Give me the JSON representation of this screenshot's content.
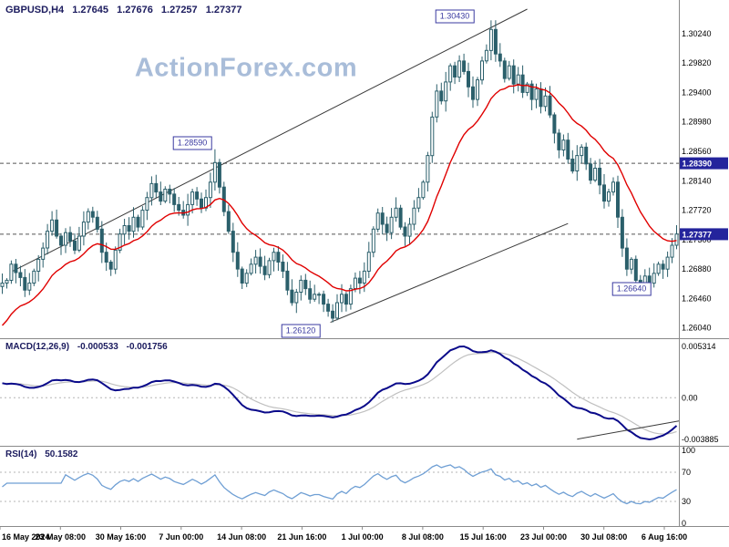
{
  "header": {
    "symbol_timeframe": "GBPUSD,H4",
    "open": "1.27645",
    "high": "1.27676",
    "low": "1.27257",
    "close": "1.27377"
  },
  "watermark_text": "ActionForex.com",
  "colors": {
    "candle": "#2b5f6b",
    "ma_line": "#e00000",
    "macd_main": "#0a0a8a",
    "macd_signal": "#c0c0c0",
    "rsi_line": "#6f9fd4",
    "watermark": "#a9bdd9",
    "header_text": "#1b1b5e",
    "annotation": "#3a3aa0",
    "axis_highlight_bg": "#24249c",
    "axis_highlight_text": "#ffffff",
    "axis_text": "#000000",
    "separator": "#8a8a8a",
    "trendline": "#3a3a3a",
    "level_line": "#555555",
    "grid_dashed": "#b5b5b5"
  },
  "chart_data": {
    "type": "candlestick",
    "title": "GBPUSD,H4",
    "symbol": "GBPUSD",
    "timeframe": "H4",
    "current_ohlc": {
      "open": 1.27645,
      "high": 1.27676,
      "low": 1.27257,
      "close": 1.27377
    },
    "main": {
      "p_min": 1.2588,
      "p_max": 1.3072,
      "price_axis_labels": [
        "1.30240",
        "1.29820",
        "1.29400",
        "1.28980",
        "1.28560",
        "1.28140",
        "1.27720",
        "1.27300",
        "1.26880",
        "1.26460",
        "1.26040"
      ],
      "levels": [
        {
          "label": "1.28390",
          "value": 1.2839
        },
        {
          "label": "1.27377",
          "value": 1.27377,
          "is_current_price": true
        }
      ],
      "annotations": [
        {
          "text": "1.30430",
          "idx": 100,
          "price": 1.3049
        },
        {
          "text": "1.28590",
          "idx": 42,
          "price": 1.2868
        },
        {
          "text": "1.26120",
          "idx": 66,
          "price": 1.26
        },
        {
          "text": "1.26640",
          "idx": 139,
          "price": 1.2659
        }
      ],
      "trendlines": [
        {
          "i1": 2,
          "p1": 1.2684,
          "i2": 116,
          "p2": 1.3059
        },
        {
          "i1": 72.5,
          "p1": 1.2612,
          "i2": 125,
          "p2": 1.2753
        }
      ],
      "ma_period": 17,
      "ma_seed": 1.26,
      "candles": {
        "first_open": 1.2663,
        "closes": [
          1.2668,
          1.2672,
          1.2695,
          1.2683,
          1.2676,
          1.2658,
          1.2668,
          1.2685,
          1.2702,
          1.2718,
          1.2742,
          1.2758,
          1.2735,
          1.2722,
          1.274,
          1.2728,
          1.2715,
          1.2735,
          1.2755,
          1.277,
          1.2762,
          1.2745,
          1.2712,
          1.2698,
          1.2688,
          1.2715,
          1.2738,
          1.275,
          1.2742,
          1.2762,
          1.2748,
          1.2772,
          1.279,
          1.281,
          1.2798,
          1.2785,
          1.2802,
          1.2795,
          1.278,
          1.2772,
          1.2765,
          1.278,
          1.2798,
          1.2788,
          1.2775,
          1.279,
          1.2812,
          1.284,
          1.2805,
          1.277,
          1.2742,
          1.2712,
          1.2688,
          1.2668,
          1.2682,
          1.2695,
          1.2705,
          1.2692,
          1.268,
          1.27,
          1.2712,
          1.2698,
          1.2685,
          1.2658,
          1.264,
          1.2655,
          1.2672,
          1.266,
          1.2645,
          1.2652,
          1.2652,
          1.2638,
          1.2628,
          1.2618,
          1.264,
          1.2652,
          1.2638,
          1.266,
          1.2675,
          1.2668,
          1.2685,
          1.2712,
          1.2745,
          1.2768,
          1.2752,
          1.274,
          1.2762,
          1.2775,
          1.2748,
          1.2735,
          1.2752,
          1.2775,
          1.279,
          1.2812,
          1.285,
          1.2905,
          1.2942,
          1.2928,
          1.2955,
          1.2978,
          1.2962,
          1.2985,
          1.297,
          1.2948,
          1.293,
          1.2958,
          1.2985,
          1.3,
          1.303,
          1.2995,
          1.2985,
          1.296,
          1.2978,
          1.2952,
          1.2965,
          1.294,
          1.2952,
          1.293,
          1.2945,
          1.292,
          1.2935,
          1.2908,
          1.2882,
          1.2858,
          1.2872,
          1.2845,
          1.2828,
          1.285,
          1.2862,
          1.2838,
          1.2815,
          1.2832,
          1.2808,
          1.2785,
          1.2798,
          1.2812,
          1.2762,
          1.2718,
          1.2688,
          1.2702,
          1.2672,
          1.2665,
          1.2678,
          1.2668,
          1.2682,
          1.2695,
          1.2688,
          1.2705,
          1.2722,
          1.2738
        ],
        "overrides": {
          "47": {
            "high": 1.2859
          },
          "72": {
            "low": 1.262
          },
          "73": {
            "low": 1.2612
          },
          "108": {
            "high": 1.3043
          },
          "141": {
            "low": 1.2666
          },
          "143": {
            "low": 1.2664
          }
        }
      }
    },
    "macd": {
      "label": "MACD(12,26,9)",
      "main_value": "-0.000533",
      "signal_value": "-0.001756",
      "axis_labels": [
        "0.005314",
        "0.00",
        "-0.003885"
      ],
      "fast": 12,
      "slow": 26,
      "signal": 9,
      "seed_offset": 0.0022,
      "trendline": {
        "i1": 127,
        "f1": 0.93,
        "i2": 150,
        "f2": 0.76
      }
    },
    "rsi": {
      "label": "RSI(14)",
      "value": "50.1582",
      "axis_labels": [
        "100",
        "70",
        "30",
        "0"
      ],
      "period": 14,
      "levels": [
        70,
        30
      ]
    },
    "time_axis": {
      "labels": [
        "16 May 2024",
        "23 May 08:00",
        "30 May 16:00",
        "7 Jun 00:00",
        "14 Jun 08:00",
        "21 Jun 16:00",
        "1 Jul 00:00",
        "8 Jul 08:00",
        "15 Jul 16:00",
        "23 Jul 00:00",
        "30 Jul 08:00",
        "6 Aug 16:00"
      ]
    }
  }
}
